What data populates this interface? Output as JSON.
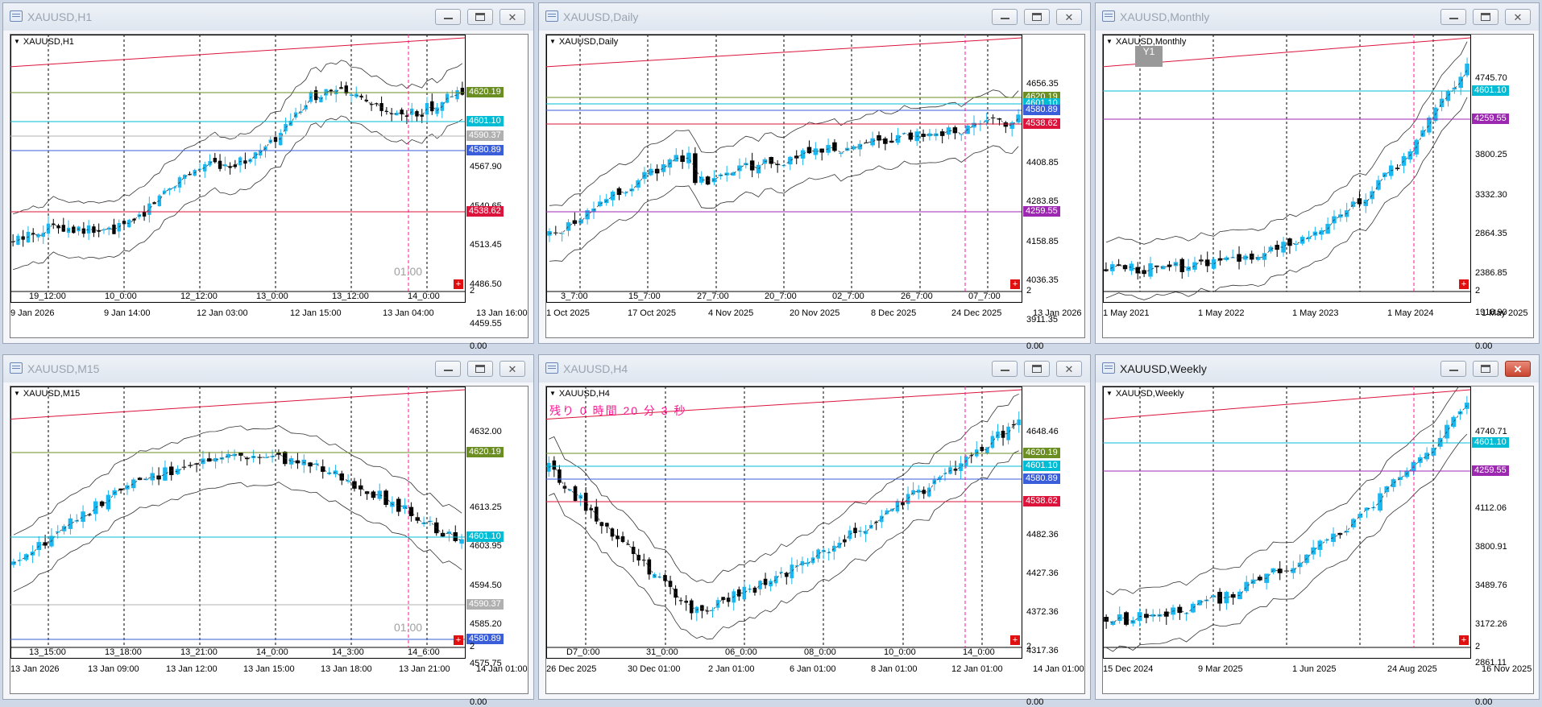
{
  "colors": {
    "bull": "#1ab6f0",
    "bear": "#000000",
    "olive": "#6b8e23",
    "cyan": "#00bcd4",
    "silver": "#b0b0b0",
    "blue": "#3a5ed9",
    "red": "#dc143c",
    "purple": "#9c27b0",
    "magenta": "#ff1493"
  },
  "panels": [
    {
      "id": "h1",
      "title": "XAUUSD,H1",
      "symbol": "XAUUSD,H1",
      "yticks": [
        "4567.90",
        "4540.65",
        "4513.45",
        "4486.50",
        "4459.55",
        "0.00"
      ],
      "xticks": [
        "9 Jan 2026",
        "9 Jan 14:00",
        "12 Jan 03:00",
        "12 Jan 15:00",
        "13 Jan 04:00",
        "13 Jan 16:00"
      ],
      "sep_labels": [
        "19_12:00",
        "10_0:00",
        "12_12:00",
        "13_0:00",
        "13_12:00",
        "14_0:00"
      ],
      "badges": [
        {
          "text": "4620.19",
          "color": "#6b8e23"
        },
        {
          "text": "4601.10",
          "color": "#00bcd4"
        },
        {
          "text": "4590.37",
          "color": "#b0b0b0"
        },
        {
          "text": "4580.89",
          "color": "#3a5ed9"
        },
        {
          "text": "4538.62",
          "color": "#dc143c"
        }
      ],
      "overlay_texts": [
        "01:00"
      ],
      "sub_value": "2"
    },
    {
      "id": "daily",
      "title": "XAUUSD,Daily",
      "symbol": "XAUUSD,Daily",
      "yticks": [
        "4656.35",
        "4408.85",
        "4283.85",
        "4158.85",
        "4036.35",
        "3911.35",
        "0.00"
      ],
      "xticks": [
        "1 Oct 2025",
        "17 Oct 2025",
        "4 Nov 2025",
        "20 Nov 2025",
        "8 Dec 2025",
        "24 Dec 2025",
        "13 Jan 2026"
      ],
      "sep_labels": [
        "3_7:00",
        "15_7:00",
        "27_7:00",
        "20_7:00",
        "02_7:00",
        "26_7:00",
        "07_7:00"
      ],
      "badges": [
        {
          "text": "4620.19",
          "color": "#6b8e23"
        },
        {
          "text": "4601.10",
          "color": "#00bcd4"
        },
        {
          "text": "4580.89",
          "color": "#3a5ed9"
        },
        {
          "text": "4538.62",
          "color": "#dc143c"
        },
        {
          "text": "4259.55",
          "color": "#9c27b0"
        }
      ],
      "overlay_texts": [],
      "sub_value": "2"
    },
    {
      "id": "monthly",
      "title": "XAUUSD,Monthly",
      "symbol": "XAUUSD,Monthly",
      "yticks": [
        "4745.70",
        "3800.25",
        "3332.30",
        "2864.35",
        "2386.85",
        "1918.90",
        "0.00"
      ],
      "xticks": [
        "1 May 2021",
        "1 May 2022",
        "1 May 2023",
        "1 May 2024",
        "1 May 2025"
      ],
      "sep_labels": [],
      "badges": [
        {
          "text": "4601.10",
          "color": "#00bcd4"
        },
        {
          "text": "4259.55",
          "color": "#9c27b0"
        }
      ],
      "overlay_texts": [
        "Y1"
      ],
      "sub_value": "2"
    },
    {
      "id": "m15",
      "title": "XAUUSD,M15",
      "symbol": "XAUUSD,M15",
      "yticks": [
        "4632.00",
        "4613.25",
        "4603.95",
        "4594.50",
        "4585.20",
        "4575.75",
        "0.00"
      ],
      "xticks": [
        "13 Jan 2026",
        "13 Jan 09:00",
        "13 Jan 12:00",
        "13 Jan 15:00",
        "13 Jan 18:00",
        "13 Jan 21:00",
        "14 Jan 01:00"
      ],
      "sep_labels": [
        "13_15:00",
        "13_18:00",
        "13_21:00",
        "14_0:00",
        "14_3:00",
        "14_6:00"
      ],
      "badges": [
        {
          "text": "4620.19",
          "color": "#6b8e23"
        },
        {
          "text": "4601.10",
          "color": "#00bcd4"
        },
        {
          "text": "4590.37",
          "color": "#b0b0b0"
        },
        {
          "text": "4580.89",
          "color": "#3a5ed9"
        }
      ],
      "overlay_texts": [
        "01:00"
      ],
      "sub_value": "2"
    },
    {
      "id": "h4",
      "title": "XAUUSD,H4",
      "symbol": "XAUUSD,H4",
      "yticks": [
        "4648.46",
        "4482.36",
        "4427.36",
        "4372.36",
        "4317.36",
        "0.00"
      ],
      "xticks": [
        "26 Dec 2025",
        "30 Dec 01:00",
        "2 Jan 01:00",
        "6 Jan 01:00",
        "8 Jan 01:00",
        "12 Jan 01:00",
        "14 Jan 01:00"
      ],
      "sep_labels": [
        "D7_0:00",
        "31_0:00",
        "06_0:00",
        "08_0:00",
        "10_0:00",
        "14_0:00"
      ],
      "badges": [
        {
          "text": "4620.19",
          "color": "#6b8e23"
        },
        {
          "text": "4601.10",
          "color": "#00bcd4"
        },
        {
          "text": "4580.89",
          "color": "#3a5ed9"
        },
        {
          "text": "4538.62",
          "color": "#dc143c"
        }
      ],
      "overlay_texts": [
        "残り 0 時間 20 分 3 秒"
      ],
      "sub_value": "2"
    },
    {
      "id": "weekly",
      "title": "XAUUSD,Weekly",
      "symbol": "XAUUSD,Weekly",
      "yticks": [
        "4740.71",
        "4429.56",
        "4112.06",
        "3800.91",
        "3489.76",
        "3172.26",
        "2861.11",
        "0.00"
      ],
      "xticks": [
        "15 Dec 2024",
        "9 Mar 2025",
        "1 Jun 2025",
        "24 Aug 2025",
        "16 Nov 2025"
      ],
      "sep_labels": [],
      "badges": [
        {
          "text": "4601.10",
          "color": "#00bcd4"
        },
        {
          "text": "4259.55",
          "color": "#9c27b0"
        }
      ],
      "overlay_texts": [],
      "sub_value": "2"
    }
  ]
}
